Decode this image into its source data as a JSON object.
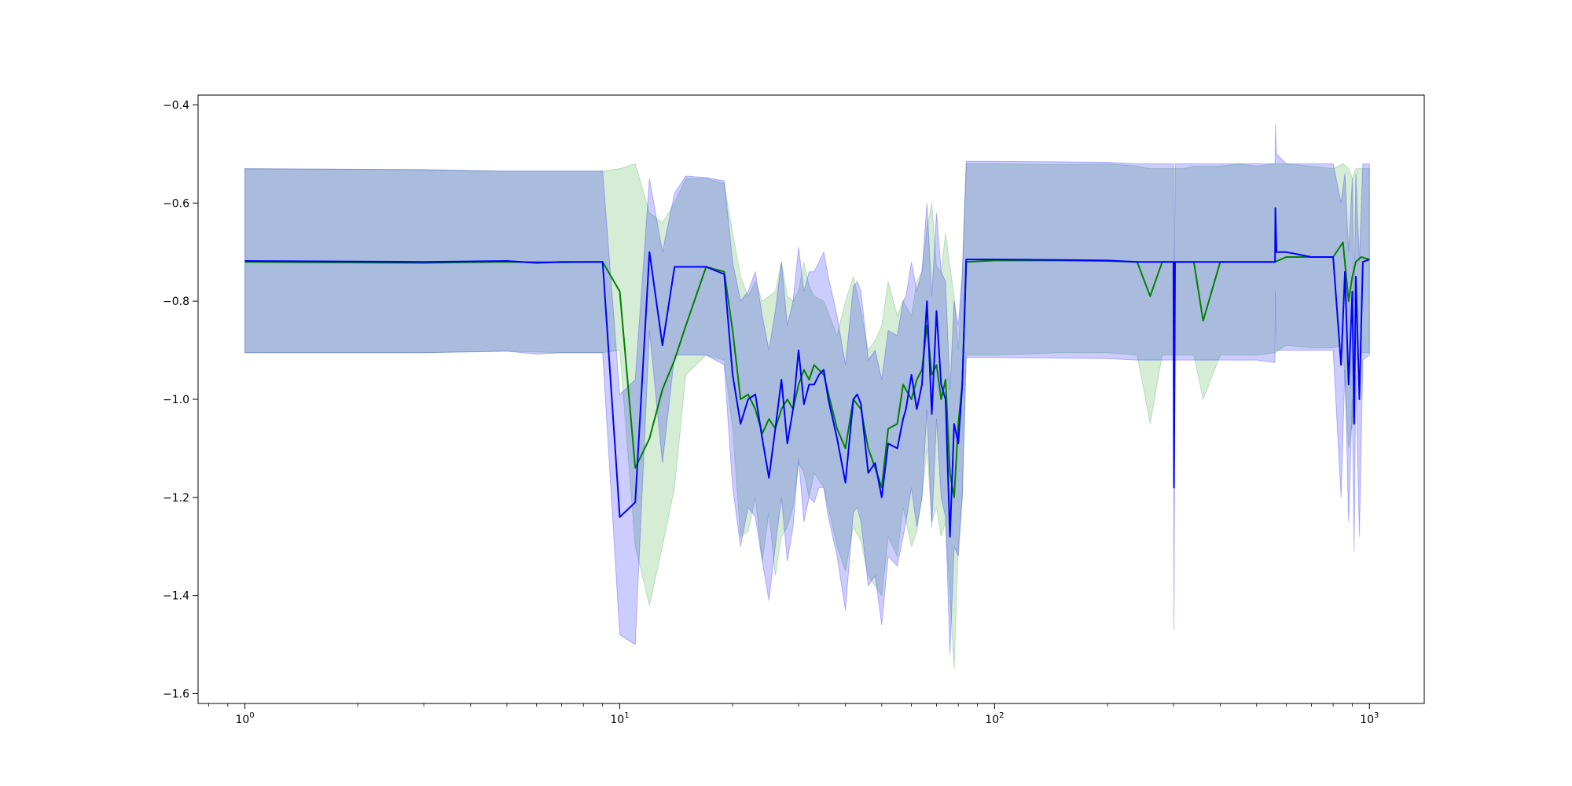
{
  "chart_data": {
    "type": "line",
    "title": "",
    "xlabel": "",
    "ylabel": "",
    "xscale": "log",
    "xlim": [
      0.75,
      1400
    ],
    "ylim": [
      -1.62,
      -0.38
    ],
    "grid": false,
    "legend": "none",
    "x_ticks": [
      {
        "value": 1,
        "base": "10",
        "exp": "0"
      },
      {
        "value": 10,
        "base": "10",
        "exp": "1"
      },
      {
        "value": 100,
        "base": "10",
        "exp": "2"
      },
      {
        "value": 1000,
        "base": "10",
        "exp": "3"
      }
    ],
    "y_ticks": [
      {
        "value": -0.4,
        "label": "−0.4"
      },
      {
        "value": -0.6,
        "label": "−0.6"
      },
      {
        "value": -0.8,
        "label": "−0.8"
      },
      {
        "value": -1.0,
        "label": "−1.0"
      },
      {
        "value": -1.2,
        "label": "−1.2"
      },
      {
        "value": -1.4,
        "label": "−1.4"
      },
      {
        "value": -1.6,
        "label": "−1.6"
      }
    ],
    "series": [
      {
        "color": "#008000",
        "band_color": "#2ca02c",
        "x": [
          1,
          3,
          5,
          7,
          9,
          10,
          11,
          12,
          13,
          14,
          15,
          17,
          19,
          20,
          21,
          22,
          23,
          24,
          25,
          26,
          27,
          28,
          29,
          30,
          31,
          32,
          33,
          35,
          38,
          40,
          42,
          44,
          46,
          48,
          50,
          52,
          55,
          57,
          60,
          62,
          64,
          66,
          68,
          70,
          72,
          74,
          76,
          78,
          80,
          82,
          84,
          100,
          150,
          200,
          240,
          260,
          280,
          300,
          320,
          340,
          360,
          400,
          450,
          500,
          560,
          600,
          700,
          800,
          850,
          880,
          900,
          920,
          950,
          1000
        ],
        "mean": [
          -0.72,
          -0.722,
          -0.72,
          -0.721,
          -0.72,
          -0.78,
          -1.14,
          -1.08,
          -0.98,
          -0.92,
          -0.85,
          -0.73,
          -0.74,
          -0.86,
          -1.0,
          -0.99,
          -1.02,
          -1.07,
          -1.04,
          -1.06,
          -1.02,
          -1.0,
          -1.02,
          -0.97,
          -0.94,
          -0.96,
          -0.93,
          -0.95,
          -1.06,
          -1.1,
          -1.0,
          -1.02,
          -1.1,
          -1.14,
          -1.18,
          -1.06,
          -1.05,
          -0.97,
          -1.0,
          -0.96,
          -0.94,
          -0.85,
          -0.95,
          -0.93,
          -1.0,
          -0.96,
          -1.15,
          -1.2,
          -1.05,
          -0.97,
          -0.72,
          -0.717,
          -0.717,
          -0.718,
          -0.72,
          -0.79,
          -0.72,
          -0.72,
          -0.72,
          -0.72,
          -0.84,
          -0.72,
          -0.72,
          -0.72,
          -0.72,
          -0.71,
          -0.71,
          -0.71,
          -0.68,
          -0.8,
          -0.75,
          -0.72,
          -0.71,
          -0.715
        ],
        "upper": [
          -0.53,
          -0.532,
          -0.535,
          -0.535,
          -0.535,
          -0.53,
          -0.52,
          -0.62,
          -0.64,
          -0.6,
          -0.55,
          -0.55,
          -0.56,
          -0.66,
          -0.75,
          -0.79,
          -0.76,
          -0.8,
          -0.79,
          -0.78,
          -0.72,
          -0.79,
          -0.8,
          -0.78,
          -0.72,
          -0.77,
          -0.79,
          -0.8,
          -0.87,
          -0.8,
          -0.75,
          -0.82,
          -0.9,
          -0.88,
          -0.85,
          -0.76,
          -0.83,
          -0.8,
          -0.83,
          -0.76,
          -0.74,
          -0.65,
          -0.6,
          -0.73,
          -0.74,
          -0.66,
          -0.73,
          -0.79,
          -0.9,
          -0.75,
          -0.52,
          -0.52,
          -0.522,
          -0.52,
          -0.525,
          -0.53,
          -0.53,
          -0.53,
          -0.53,
          -0.525,
          -0.525,
          -0.525,
          -0.52,
          -0.525,
          -0.52,
          -0.52,
          -0.525,
          -0.53,
          -0.52,
          -0.53,
          -0.55,
          -0.53,
          -0.53,
          -0.53
        ],
        "lower": [
          -0.905,
          -0.905,
          -0.902,
          -0.905,
          -0.905,
          -0.9,
          -1.3,
          -1.42,
          -1.3,
          -1.18,
          -0.95,
          -0.91,
          -0.92,
          -1.06,
          -1.28,
          -1.27,
          -1.2,
          -1.33,
          -1.23,
          -1.36,
          -1.28,
          -1.26,
          -1.22,
          -1.13,
          -1.15,
          -1.2,
          -1.15,
          -1.18,
          -1.3,
          -1.35,
          -1.26,
          -1.29,
          -1.36,
          -1.38,
          -1.4,
          -1.28,
          -1.32,
          -1.22,
          -1.3,
          -1.27,
          -1.2,
          -1.1,
          -1.25,
          -1.22,
          -1.28,
          -1.25,
          -1.4,
          -1.55,
          -1.3,
          -1.2,
          -0.91,
          -0.91,
          -0.905,
          -0.905,
          -0.91,
          -1.05,
          -0.91,
          -0.91,
          -0.91,
          -0.91,
          -1.0,
          -0.91,
          -0.91,
          -0.91,
          -0.905,
          -0.89,
          -0.895,
          -0.895,
          -0.89,
          -1.1,
          -1.05,
          -0.92,
          -0.905,
          -0.905
        ]
      },
      {
        "color": "#0000ff",
        "band_color": "#0000ff",
        "x": [
          1,
          3,
          5,
          6,
          7,
          9,
          10,
          11,
          12,
          13,
          14,
          15,
          17,
          19,
          20,
          21,
          22,
          23,
          24,
          25,
          26,
          27,
          28,
          29,
          30,
          31,
          32,
          33,
          34,
          35,
          36,
          38,
          40,
          42,
          43,
          44,
          46,
          48,
          50,
          52,
          55,
          57,
          58,
          60,
          62,
          64,
          66,
          68,
          70,
          72,
          74,
          76,
          78,
          80,
          82,
          84,
          100,
          150,
          200,
          240,
          260,
          280,
          300,
          301,
          303,
          320,
          340,
          360,
          400,
          450,
          500,
          560,
          561,
          565,
          600,
          700,
          800,
          840,
          860,
          880,
          900,
          910,
          920,
          940,
          960,
          1000
        ],
        "mean": [
          -0.718,
          -0.72,
          -0.718,
          -0.722,
          -0.72,
          -0.72,
          -1.24,
          -1.21,
          -0.7,
          -0.89,
          -0.73,
          -0.73,
          -0.73,
          -0.745,
          -0.95,
          -1.05,
          -1.0,
          -0.99,
          -1.08,
          -1.16,
          -1.06,
          -0.96,
          -1.09,
          -1.02,
          -0.9,
          -1.01,
          -0.97,
          -0.97,
          -0.95,
          -0.94,
          -1.0,
          -1.08,
          -1.17,
          -1.0,
          -0.99,
          -1.01,
          -1.15,
          -1.13,
          -1.2,
          -1.09,
          -1.1,
          -1.04,
          -1.02,
          -0.95,
          -1.02,
          -0.97,
          -0.8,
          -1.03,
          -0.82,
          -0.97,
          -1.0,
          -1.28,
          -1.05,
          -1.09,
          -0.97,
          -0.715,
          -0.715,
          -0.716,
          -0.717,
          -0.72,
          -0.72,
          -0.72,
          -0.72,
          -1.18,
          -0.72,
          -0.72,
          -0.72,
          -0.72,
          -0.72,
          -0.72,
          -0.72,
          -0.72,
          -0.61,
          -0.7,
          -0.7,
          -0.71,
          -0.71,
          -0.93,
          -0.74,
          -0.97,
          -0.78,
          -1.05,
          -0.75,
          -1.0,
          -0.72,
          -0.715
        ],
        "upper": [
          -0.53,
          -0.532,
          -0.535,
          -0.535,
          -0.535,
          -0.535,
          -0.99,
          -0.96,
          -0.55,
          -0.7,
          -0.58,
          -0.545,
          -0.548,
          -0.555,
          -0.72,
          -0.8,
          -0.78,
          -0.74,
          -0.83,
          -0.9,
          -0.82,
          -0.72,
          -0.85,
          -0.8,
          -0.69,
          -0.78,
          -0.74,
          -0.74,
          -0.72,
          -0.7,
          -0.75,
          -0.83,
          -0.93,
          -0.77,
          -0.76,
          -0.78,
          -0.92,
          -0.9,
          -0.96,
          -0.86,
          -0.87,
          -0.8,
          -0.79,
          -0.72,
          -0.78,
          -0.74,
          -0.6,
          -0.79,
          -0.62,
          -0.74,
          -0.76,
          -0.98,
          -0.8,
          -0.85,
          -0.74,
          -0.515,
          -0.515,
          -0.516,
          -0.517,
          -0.52,
          -0.52,
          -0.52,
          -0.52,
          -0.9,
          -0.52,
          -0.52,
          -0.52,
          -0.52,
          -0.52,
          -0.52,
          -0.52,
          -0.52,
          -0.44,
          -0.5,
          -0.52,
          -0.52,
          -0.52,
          -0.6,
          -0.54,
          -0.7,
          -0.55,
          -0.8,
          -0.54,
          -0.72,
          -0.52,
          -0.52
        ],
        "lower": [
          -0.905,
          -0.905,
          -0.902,
          -0.908,
          -0.905,
          -0.905,
          -1.48,
          -1.5,
          -0.86,
          -1.13,
          -0.91,
          -0.91,
          -0.91,
          -0.93,
          -1.18,
          -1.3,
          -1.22,
          -1.24,
          -1.33,
          -1.41,
          -1.3,
          -1.2,
          -1.33,
          -1.26,
          -1.12,
          -1.25,
          -1.2,
          -1.21,
          -1.18,
          -1.18,
          -1.24,
          -1.32,
          -1.43,
          -1.23,
          -1.22,
          -1.25,
          -1.38,
          -1.36,
          -1.46,
          -1.32,
          -1.34,
          -1.28,
          -1.25,
          -1.18,
          -1.26,
          -1.2,
          -1.02,
          -1.26,
          -1.04,
          -1.2,
          -1.24,
          -1.52,
          -1.3,
          -1.32,
          -1.2,
          -0.915,
          -0.915,
          -0.916,
          -0.917,
          -0.92,
          -0.92,
          -0.92,
          -0.92,
          -1.47,
          -0.92,
          -0.92,
          -0.92,
          -0.92,
          -0.92,
          -0.92,
          -0.92,
          -0.925,
          -0.78,
          -0.9,
          -0.9,
          -0.9,
          -0.9,
          -1.2,
          -0.94,
          -1.25,
          -1.0,
          -1.31,
          -0.95,
          -1.28,
          -0.92,
          -0.91
        ]
      }
    ]
  }
}
